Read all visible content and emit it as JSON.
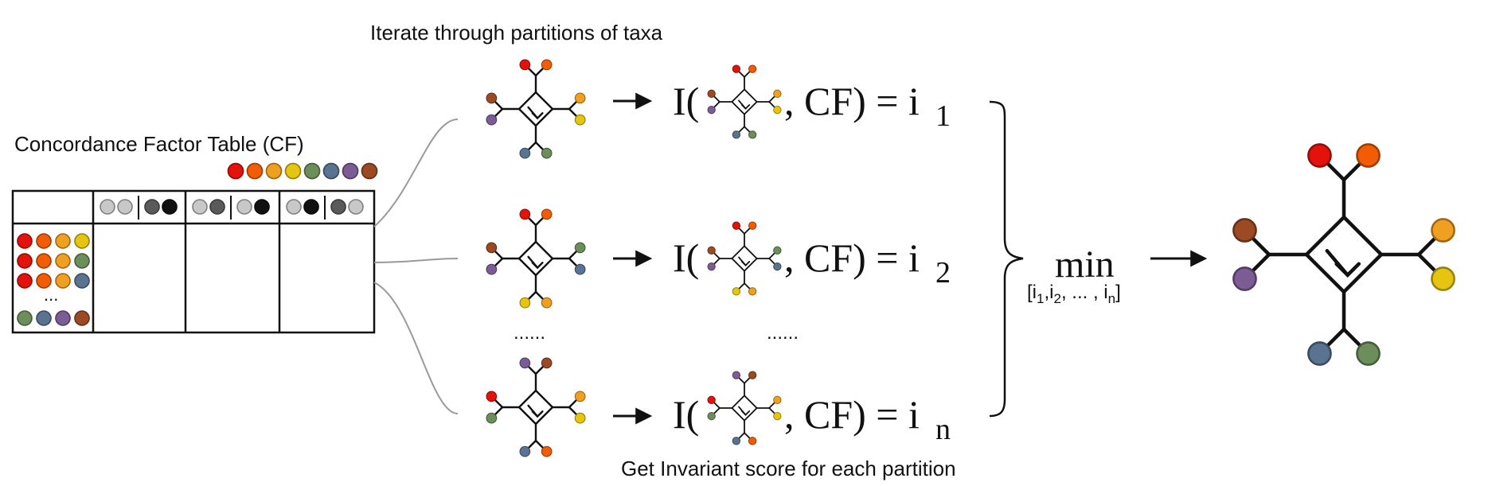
{
  "labels": {
    "top_caption": "Iterate through partitions of taxa",
    "bottom_caption": "Get Invariant score for each partition",
    "table_title": "Concordance Factor Table (CF)",
    "table_ellipsis": "...",
    "row_dots_left": "......",
    "row_dots_right": "......",
    "min_label": "min",
    "min_sub": "[i1,i2, ... , in]"
  },
  "formulas": [
    {
      "prefix": "I(",
      "suffix": ", CF) = i",
      "sub": "1"
    },
    {
      "prefix": "I(",
      "suffix": ", CF) = i",
      "sub": "2"
    },
    {
      "prefix": "I(",
      "suffix": ", CF) = i",
      "sub": "n"
    }
  ],
  "colors": {
    "red": "#e3120b",
    "dark_orange": "#f25c05",
    "orange": "#f0a020",
    "yellow": "#e6c510",
    "green": "#6b8e5a",
    "slate_blue": "#5a7390",
    "purple": "#7b5c95",
    "brown": "#9c4a24",
    "light_gray": "#c8c8c8",
    "dark_gray": "#5a5a5a",
    "black": "#111111",
    "line": "#111111",
    "connector": "#999999"
  },
  "taxa_legend": [
    "red",
    "dark_orange",
    "orange",
    "yellow",
    "green",
    "slate_blue",
    "purple",
    "brown"
  ],
  "header_columns": [
    [
      [
        "light_gray",
        "light_gray"
      ],
      [
        "dark_gray",
        "black"
      ]
    ],
    [
      [
        "light_gray",
        "dark_gray"
      ],
      [
        "light_gray",
        "black"
      ]
    ],
    [
      [
        "light_gray",
        "black"
      ],
      [
        "dark_gray",
        "light_gray"
      ]
    ]
  ],
  "quartet_rows": [
    [
      "red",
      "dark_orange",
      "orange",
      "yellow"
    ],
    [
      "red",
      "dark_orange",
      "orange",
      "green"
    ],
    [
      "red",
      "dark_orange",
      "orange",
      "slate_blue"
    ],
    [
      "green",
      "slate_blue",
      "purple",
      "brown"
    ]
  ],
  "partitions": [
    {
      "top": [
        "red",
        "dark_orange"
      ],
      "left": [
        "brown",
        "purple"
      ],
      "right": [
        "orange",
        "yellow"
      ],
      "bottom": [
        "slate_blue",
        "green"
      ]
    },
    {
      "top": [
        "red",
        "dark_orange"
      ],
      "left": [
        "brown",
        "purple"
      ],
      "right": [
        "green",
        "slate_blue"
      ],
      "bottom": [
        "yellow",
        "orange"
      ]
    },
    {
      "top": [
        "purple",
        "brown"
      ],
      "left": [
        "red",
        "green"
      ],
      "right": [
        "orange",
        "yellow"
      ],
      "bottom": [
        "slate_blue",
        "dark_orange"
      ]
    }
  ],
  "result": {
    "top": [
      "red",
      "dark_orange"
    ],
    "left": [
      "brown",
      "purple"
    ],
    "right": [
      "orange",
      "yellow"
    ],
    "bottom": [
      "slate_blue",
      "green"
    ]
  }
}
